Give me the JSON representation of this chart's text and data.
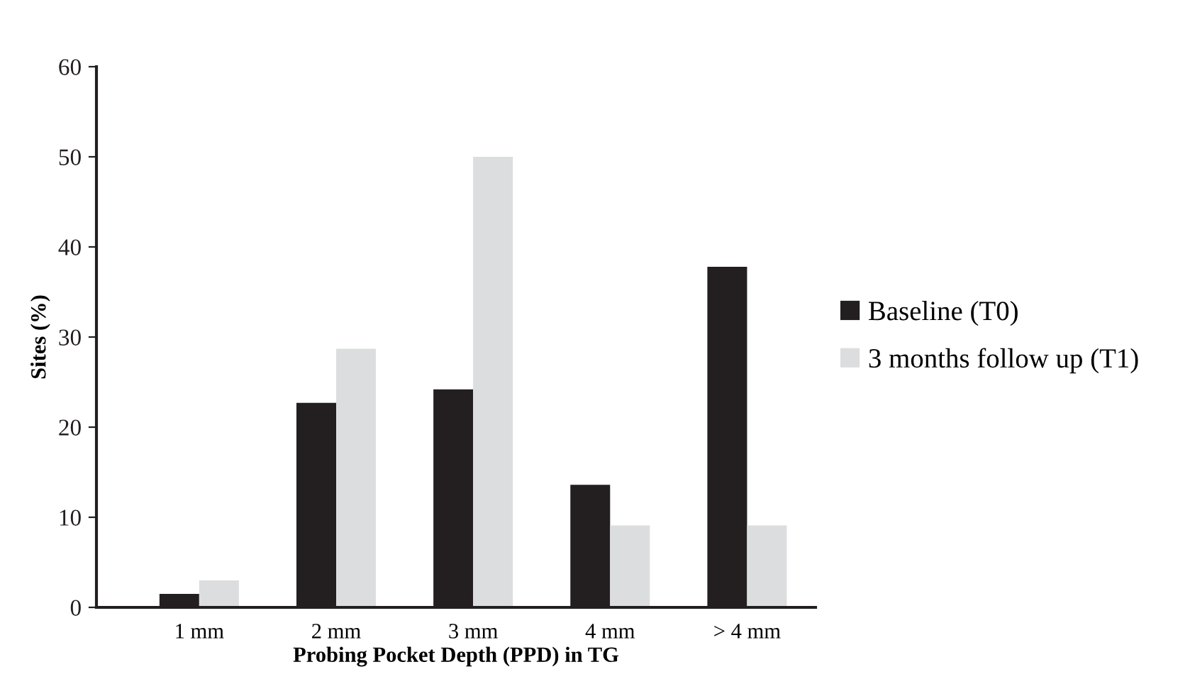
{
  "chart_data": {
    "type": "bar",
    "xlabel": "Probing Pocket Depth (PPD) in TG",
    "ylabel": "Sites (%)",
    "categories": [
      "1 mm",
      "2 mm",
      "3 mm",
      "4 mm",
      "> 4 mm"
    ],
    "series": [
      {
        "name": "Baseline (T0)",
        "color": "#231f20",
        "values": [
          1.5,
          22.7,
          24.2,
          13.6,
          37.8
        ]
      },
      {
        "name": "3 months follow up (T1)",
        "color": "#dcdddf",
        "values": [
          3.0,
          28.7,
          50.0,
          9.1,
          9.1
        ]
      }
    ],
    "ylim": [
      0,
      60
    ],
    "yticks": [
      0,
      10,
      20,
      30,
      40,
      50,
      60
    ],
    "grid": false,
    "legend": "right"
  }
}
